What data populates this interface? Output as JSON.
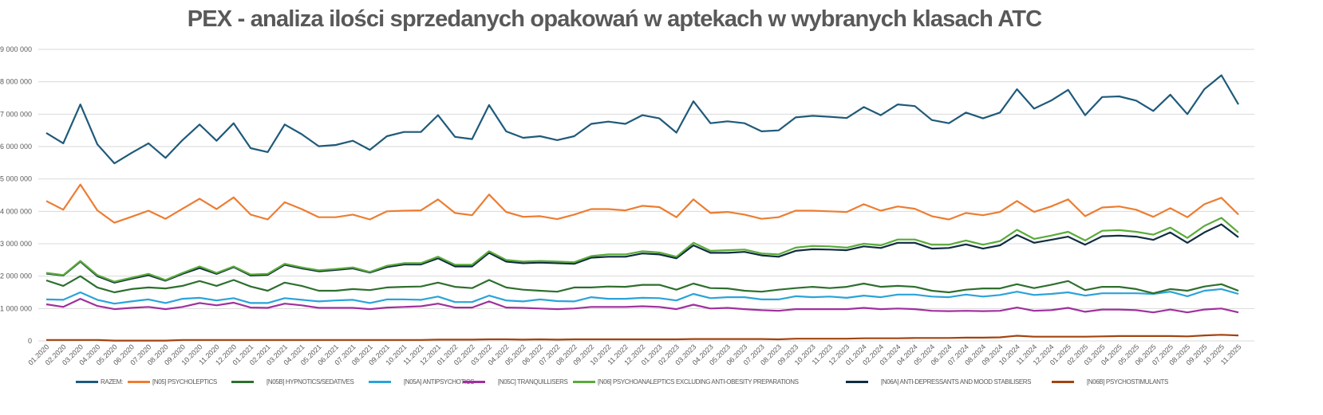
{
  "chart_data": {
    "type": "line",
    "title": "PEX - analiza ilości sprzedanych opakowań w aptekach w wybranych klasach ATC",
    "xlabel": "",
    "ylabel": "",
    "ylim": [
      0,
      9000000
    ],
    "yticks": [
      0,
      1000000,
      2000000,
      3000000,
      4000000,
      5000000,
      6000000,
      7000000,
      8000000,
      9000000
    ],
    "ytick_labels": [
      "0",
      "1 000 000",
      "2 000 000",
      "3 000 000",
      "4 000 000",
      "5 000 000",
      "6 000 000",
      "7 000 000",
      "8 000 000",
      "9 000 000"
    ],
    "grid": true,
    "legend_position": "bottom",
    "x": [
      "01.2020",
      "02.2020",
      "03.2020",
      "04.2020",
      "05.2020",
      "06.2020",
      "07.2020",
      "08.2020",
      "09.2020",
      "10.2020",
      "11.2020",
      "12.2020",
      "01.2021",
      "02.2021",
      "03.2021",
      "04.2021",
      "05.2021",
      "06.2021",
      "07.2021",
      "08.2021",
      "09.2021",
      "10.2021",
      "11.2021",
      "12.2021",
      "01.2022",
      "02.2022",
      "03.2022",
      "04.2022",
      "05.2022",
      "06.2022",
      "07.2022",
      "08.2022",
      "09.2022",
      "10.2022",
      "11.2022",
      "12.2022",
      "01.2023",
      "02.2023",
      "03.2023",
      "04.2023",
      "05.2023",
      "06.2023",
      "07.2023",
      "08.2023",
      "09.2023",
      "10.2023",
      "11.2023",
      "12.2023",
      "01.2024",
      "02.2024",
      "03.2024",
      "04.2024",
      "05.2024",
      "06.2024",
      "07.2024",
      "08.2024",
      "09.2024",
      "10.2024",
      "11.2024",
      "12.2024",
      "01.2025",
      "02.2025",
      "03.2025",
      "04.2025",
      "05.2025",
      "06.2025",
      "07.2025",
      "08.2025",
      "09.2025",
      "10.2025",
      "11.2025"
    ],
    "series": [
      {
        "name": "RAZEM:",
        "color": "#1f5a7a",
        "values": [
          6420000,
          6100000,
          7300000,
          6070000,
          5480000,
          5800000,
          6100000,
          5650000,
          6200000,
          6680000,
          6180000,
          6720000,
          5950000,
          5830000,
          6680000,
          6380000,
          6010000,
          6050000,
          6180000,
          5900000,
          6320000,
          6450000,
          6450000,
          6970000,
          6300000,
          6230000,
          7280000,
          6470000,
          6270000,
          6320000,
          6200000,
          6320000,
          6700000,
          6770000,
          6700000,
          6970000,
          6870000,
          6430000,
          7400000,
          6720000,
          6780000,
          6720000,
          6470000,
          6500000,
          6900000,
          6950000,
          6920000,
          6880000,
          7220000,
          6970000,
          7300000,
          7250000,
          6820000,
          6720000,
          7050000,
          6870000,
          7050000,
          7770000,
          7170000,
          7420000,
          7750000,
          6970000,
          7530000,
          7550000,
          7420000,
          7100000,
          7600000,
          7000000,
          7770000,
          8200000,
          7300000
        ]
      },
      {
        "name": "[N05] PSYCHOLEPTICS",
        "color": "#ed7d31",
        "values": [
          4320000,
          4050000,
          4830000,
          4030000,
          3650000,
          3830000,
          4020000,
          3770000,
          4080000,
          4390000,
          4070000,
          4430000,
          3900000,
          3750000,
          4280000,
          4070000,
          3820000,
          3820000,
          3900000,
          3750000,
          4000000,
          4020000,
          4030000,
          4370000,
          3950000,
          3880000,
          4520000,
          3980000,
          3830000,
          3850000,
          3760000,
          3900000,
          4070000,
          4070000,
          4030000,
          4170000,
          4130000,
          3820000,
          4370000,
          3950000,
          3980000,
          3900000,
          3770000,
          3820000,
          4020000,
          4020000,
          4000000,
          3980000,
          4220000,
          4020000,
          4150000,
          4080000,
          3850000,
          3750000,
          3950000,
          3880000,
          3980000,
          4320000,
          3980000,
          4150000,
          4370000,
          3850000,
          4120000,
          4150000,
          4050000,
          3830000,
          4100000,
          3820000,
          4220000,
          4420000,
          3900000
        ]
      },
      {
        "name": "[N05B] HYPNOTICS/SEDATIVES",
        "color": "#2e6f2e",
        "values": [
          1870000,
          1700000,
          2000000,
          1650000,
          1500000,
          1600000,
          1650000,
          1620000,
          1700000,
          1850000,
          1700000,
          1880000,
          1680000,
          1550000,
          1800000,
          1700000,
          1550000,
          1550000,
          1600000,
          1570000,
          1650000,
          1670000,
          1680000,
          1800000,
          1670000,
          1630000,
          1880000,
          1650000,
          1580000,
          1550000,
          1520000,
          1650000,
          1650000,
          1680000,
          1670000,
          1730000,
          1730000,
          1580000,
          1770000,
          1630000,
          1620000,
          1550000,
          1520000,
          1580000,
          1630000,
          1670000,
          1630000,
          1670000,
          1770000,
          1670000,
          1700000,
          1670000,
          1550000,
          1500000,
          1580000,
          1620000,
          1620000,
          1750000,
          1630000,
          1730000,
          1850000,
          1570000,
          1670000,
          1670000,
          1600000,
          1470000,
          1600000,
          1550000,
          1680000,
          1750000,
          1550000
        ]
      },
      {
        "name": "[N05A] ANTIPSYCHOTICS",
        "color": "#2aa3d9",
        "values": [
          1280000,
          1270000,
          1500000,
          1270000,
          1150000,
          1220000,
          1280000,
          1170000,
          1300000,
          1330000,
          1250000,
          1320000,
          1170000,
          1170000,
          1320000,
          1270000,
          1220000,
          1250000,
          1270000,
          1170000,
          1280000,
          1280000,
          1270000,
          1370000,
          1200000,
          1200000,
          1400000,
          1250000,
          1220000,
          1280000,
          1230000,
          1220000,
          1350000,
          1300000,
          1300000,
          1330000,
          1320000,
          1250000,
          1450000,
          1320000,
          1350000,
          1350000,
          1280000,
          1280000,
          1380000,
          1350000,
          1370000,
          1330000,
          1400000,
          1350000,
          1430000,
          1430000,
          1370000,
          1350000,
          1430000,
          1370000,
          1420000,
          1520000,
          1420000,
          1450000,
          1500000,
          1400000,
          1470000,
          1470000,
          1470000,
          1450000,
          1520000,
          1380000,
          1550000,
          1600000,
          1450000
        ]
      },
      {
        "name": "[N05C] TRANQUILLISERS",
        "color": "#a0309e",
        "values": [
          1130000,
          1050000,
          1300000,
          1080000,
          980000,
          1020000,
          1050000,
          980000,
          1050000,
          1170000,
          1100000,
          1180000,
          1030000,
          1020000,
          1150000,
          1100000,
          1020000,
          1020000,
          1020000,
          980000,
          1030000,
          1050000,
          1070000,
          1150000,
          1030000,
          1030000,
          1220000,
          1030000,
          1020000,
          1000000,
          980000,
          1000000,
          1050000,
          1050000,
          1050000,
          1070000,
          1050000,
          980000,
          1120000,
          1000000,
          1020000,
          980000,
          950000,
          930000,
          980000,
          980000,
          980000,
          980000,
          1020000,
          980000,
          1000000,
          980000,
          930000,
          920000,
          930000,
          920000,
          930000,
          1030000,
          930000,
          950000,
          1020000,
          900000,
          970000,
          970000,
          950000,
          880000,
          970000,
          880000,
          970000,
          1000000,
          880000
        ]
      },
      {
        "name": "[N06] PSYCHOANALEPTICS EXCLUDING ANTI-OBESITY PREPARATIONS",
        "color": "#5aab3a",
        "values": [
          2100000,
          2030000,
          2470000,
          2030000,
          1830000,
          1950000,
          2070000,
          1880000,
          2100000,
          2300000,
          2100000,
          2300000,
          2050000,
          2070000,
          2380000,
          2270000,
          2180000,
          2220000,
          2270000,
          2130000,
          2320000,
          2400000,
          2400000,
          2600000,
          2350000,
          2350000,
          2770000,
          2500000,
          2450000,
          2470000,
          2450000,
          2430000,
          2620000,
          2670000,
          2670000,
          2770000,
          2730000,
          2600000,
          3030000,
          2780000,
          2800000,
          2820000,
          2700000,
          2670000,
          2880000,
          2930000,
          2920000,
          2880000,
          3000000,
          2950000,
          3130000,
          3130000,
          2970000,
          2970000,
          3100000,
          2970000,
          3080000,
          3430000,
          3150000,
          3250000,
          3370000,
          3100000,
          3400000,
          3420000,
          3370000,
          3280000,
          3500000,
          3180000,
          3550000,
          3800000,
          3350000
        ]
      },
      {
        "name": "[N06A] ANTI-DEPRESSANTS AND MOOD STABILISERS",
        "color": "#0f2d40",
        "values": [
          2080000,
          2020000,
          2450000,
          2000000,
          1800000,
          1920000,
          2030000,
          1860000,
          2070000,
          2250000,
          2070000,
          2280000,
          2020000,
          2040000,
          2350000,
          2240000,
          2150000,
          2190000,
          2240000,
          2110000,
          2280000,
          2360000,
          2360000,
          2550000,
          2300000,
          2300000,
          2720000,
          2450000,
          2400000,
          2420000,
          2400000,
          2380000,
          2570000,
          2600000,
          2600000,
          2700000,
          2670000,
          2550000,
          2950000,
          2720000,
          2720000,
          2750000,
          2640000,
          2600000,
          2780000,
          2830000,
          2820000,
          2800000,
          2920000,
          2870000,
          3030000,
          3030000,
          2850000,
          2870000,
          2980000,
          2850000,
          2950000,
          3270000,
          3030000,
          3120000,
          3220000,
          2970000,
          3230000,
          3250000,
          3220000,
          3120000,
          3350000,
          3030000,
          3350000,
          3600000,
          3200000
        ]
      },
      {
        "name": "[N06B] PSYCHOSTIMULANTS",
        "color": "#a3430f",
        "values": [
          30000,
          30000,
          30000,
          30000,
          10000,
          10000,
          10000,
          10000,
          30000,
          30000,
          30000,
          30000,
          30000,
          30000,
          30000,
          30000,
          30000,
          30000,
          30000,
          30000,
          30000,
          30000,
          30000,
          40000,
          40000,
          40000,
          50000,
          50000,
          40000,
          50000,
          40000,
          50000,
          50000,
          50000,
          50000,
          50000,
          50000,
          50000,
          60000,
          60000,
          60000,
          60000,
          60000,
          50000,
          70000,
          70000,
          70000,
          70000,
          80000,
          80000,
          80000,
          90000,
          90000,
          90000,
          100000,
          100000,
          110000,
          160000,
          130000,
          130000,
          130000,
          130000,
          140000,
          150000,
          150000,
          150000,
          150000,
          140000,
          170000,
          190000,
          170000
        ]
      }
    ]
  }
}
